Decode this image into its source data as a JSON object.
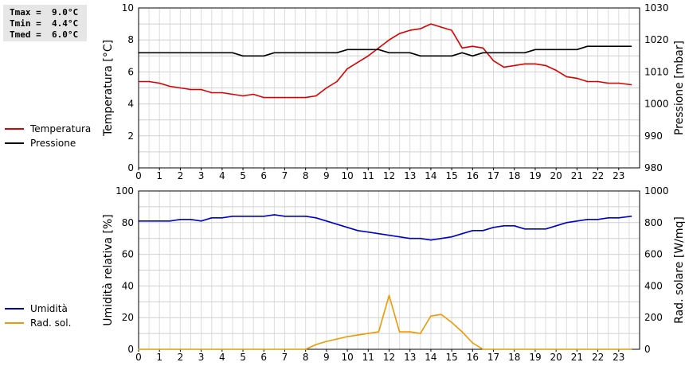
{
  "stats": {
    "tmax": "Tmax =  9.0°C",
    "tmin": "Tmin =  4.4°C",
    "tmed": "Tmed =  6.0°C"
  },
  "chart_data": [
    {
      "type": "line",
      "x_ticks": [
        0,
        1,
        2,
        3,
        4,
        5,
        6,
        7,
        8,
        9,
        10,
        11,
        12,
        13,
        14,
        15,
        16,
        17,
        18,
        19,
        20,
        21,
        22,
        23
      ],
      "xlim": [
        0,
        24
      ],
      "ylabel": "Temperatura [°C]",
      "ylabel_right": "Pressione [mbar]",
      "ylim": [
        0,
        10
      ],
      "y_ticks": [
        0,
        2,
        4,
        6,
        8,
        10
      ],
      "ylim_right": [
        980,
        1030
      ],
      "y_ticks_right": [
        980,
        990,
        1000,
        1010,
        1020,
        1030
      ],
      "grid": true,
      "legend": "left",
      "series": [
        {
          "name": "Temperatura",
          "axis": "left",
          "color": "#dd0000",
          "x": [
            0,
            0.5,
            1,
            1.5,
            2,
            2.5,
            3,
            3.5,
            4,
            4.5,
            5,
            5.5,
            6,
            6.5,
            7,
            7.5,
            8,
            8.5,
            9,
            9.5,
            10,
            10.5,
            11,
            11.5,
            12,
            12.5,
            13,
            13.5,
            14,
            14.5,
            15,
            15.5,
            16,
            16.5,
            17,
            17.5,
            18,
            18.5,
            19,
            19.5,
            20,
            20.5,
            21,
            21.5,
            22,
            22.5,
            23,
            23.6
          ],
          "values": [
            5.4,
            5.4,
            5.3,
            5.1,
            5.0,
            4.9,
            4.9,
            4.7,
            4.7,
            4.6,
            4.5,
            4.6,
            4.4,
            4.4,
            4.4,
            4.4,
            4.4,
            4.5,
            5.0,
            5.4,
            6.2,
            6.6,
            7.0,
            7.5,
            8.0,
            8.4,
            8.6,
            8.7,
            9.0,
            8.8,
            8.6,
            7.5,
            7.6,
            7.5,
            6.7,
            6.3,
            6.4,
            6.5,
            6.5,
            6.4,
            6.1,
            5.7,
            5.6,
            5.4,
            5.4,
            5.3,
            5.3,
            5.2
          ]
        },
        {
          "name": "Pressione",
          "axis": "right",
          "color": "#000000",
          "x": [
            0,
            4.5,
            5,
            5.5,
            6,
            6.5,
            9.5,
            10,
            11.5,
            12,
            13,
            13.5,
            15,
            15.5,
            16,
            16.5,
            18.5,
            19,
            21,
            21.5,
            23.6
          ],
          "values": [
            1016,
            1016,
            1015,
            1015,
            1015,
            1016,
            1016,
            1017,
            1017,
            1016,
            1016,
            1015,
            1015,
            1016,
            1015,
            1016,
            1016,
            1017,
            1017,
            1018,
            1018
          ]
        }
      ]
    },
    {
      "type": "line",
      "x_ticks": [
        0,
        1,
        2,
        3,
        4,
        5,
        6,
        7,
        8,
        9,
        10,
        11,
        12,
        13,
        14,
        15,
        16,
        17,
        18,
        19,
        20,
        21,
        22,
        23
      ],
      "xlim": [
        0,
        24
      ],
      "ylabel": "Umidità relativa [%]",
      "ylabel_right": "Rad. solare [W/mq]",
      "ylim": [
        0,
        100
      ],
      "y_ticks": [
        0,
        20,
        40,
        60,
        80,
        100
      ],
      "ylim_right": [
        0,
        1000
      ],
      "y_ticks_right": [
        0,
        200,
        400,
        600,
        800,
        1000
      ],
      "grid": true,
      "legend": "left",
      "series": [
        {
          "name": "Umidità",
          "axis": "left",
          "color": "#0000cc",
          "x": [
            0,
            0.5,
            1,
            1.5,
            2,
            2.5,
            3,
            3.5,
            4,
            4.5,
            5,
            5.5,
            6,
            6.5,
            7,
            7.5,
            8,
            8.5,
            9,
            9.5,
            10,
            10.5,
            11,
            11.5,
            12,
            12.5,
            13,
            13.5,
            14,
            14.5,
            15,
            15.5,
            16,
            16.5,
            17,
            17.5,
            18,
            18.5,
            19,
            19.5,
            20,
            20.5,
            21,
            21.5,
            22,
            22.5,
            23,
            23.6
          ],
          "values": [
            81,
            81,
            81,
            81,
            82,
            82,
            81,
            83,
            83,
            84,
            84,
            84,
            84,
            85,
            84,
            84,
            84,
            83,
            81,
            79,
            77,
            75,
            74,
            73,
            72,
            71,
            70,
            70,
            69,
            70,
            71,
            73,
            75,
            75,
            77,
            78,
            78,
            76,
            76,
            76,
            78,
            80,
            81,
            82,
            82,
            83,
            83,
            84
          ]
        },
        {
          "name": "Rad. sol.",
          "axis": "right",
          "color": "#ee9900",
          "x": [
            0,
            8,
            8.5,
            9,
            9.5,
            10,
            10.5,
            11,
            11.5,
            12,
            12.5,
            13,
            13.5,
            14,
            14.5,
            15,
            15.5,
            16,
            16.5,
            23.6
          ],
          "values": [
            0,
            0,
            30,
            50,
            65,
            80,
            90,
            100,
            110,
            340,
            110,
            110,
            100,
            210,
            220,
            170,
            110,
            40,
            0,
            0
          ]
        }
      ]
    }
  ]
}
